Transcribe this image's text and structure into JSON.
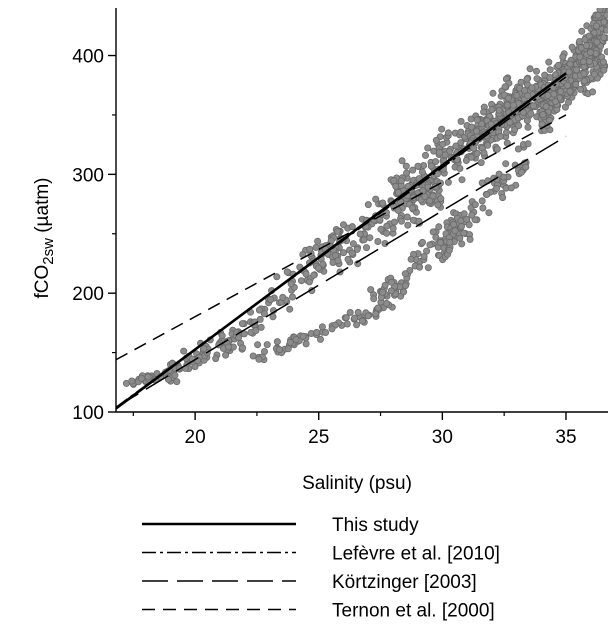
{
  "chart_data": {
    "type": "scatter",
    "title": "",
    "xlabel": "Salinity (psu)",
    "ylabel": {
      "main": "fCO",
      "subscript": "2sw",
      "unit": " (µatm)"
    },
    "xlim": [
      16.8,
      36.7
    ],
    "ylim": [
      100,
      440
    ],
    "x_ticks": [
      20,
      25,
      30,
      35
    ],
    "y_ticks": [
      100,
      200,
      300,
      400
    ],
    "grid": false,
    "legend_position": "below plot",
    "observations": {
      "color": "#8c8c8c",
      "edge_color": "#6a6a6a",
      "clusters": [
        {
          "x": [
            17.3,
            19.0
          ],
          "y": [
            124,
            133
          ],
          "n": 30,
          "spread": 3
        },
        {
          "x": [
            19.0,
            22.0
          ],
          "y": [
            133,
            165
          ],
          "n": 80,
          "spread": 8
        },
        {
          "x": [
            22.0,
            26.0
          ],
          "y": [
            165,
            250
          ],
          "n": 90,
          "spread": 14
        },
        {
          "x": [
            22.5,
            28.0
          ],
          "y": [
            148,
            190
          ],
          "n": 70,
          "spread": 5
        },
        {
          "x": [
            25.0,
            30.0
          ],
          "y": [
            230,
            290
          ],
          "n": 140,
          "spread": 18
        },
        {
          "x": [
            27.0,
            31.0
          ],
          "y": [
            190,
            260
          ],
          "n": 90,
          "spread": 14
        },
        {
          "x": [
            28.0,
            33.0
          ],
          "y": [
            280,
            360
          ],
          "n": 220,
          "spread": 20
        },
        {
          "x": [
            30.0,
            33.5
          ],
          "y": [
            240,
            320
          ],
          "n": 80,
          "spread": 14
        },
        {
          "x": [
            31.0,
            36.6
          ],
          "y": [
            330,
            400
          ],
          "n": 320,
          "spread": 18
        },
        {
          "x": [
            34.0,
            36.6
          ],
          "y": [
            350,
            430
          ],
          "n": 260,
          "spread": 16
        }
      ]
    },
    "series": [
      {
        "name": "This study",
        "dash": "solid",
        "x": [
          16.8,
          35.0
        ],
        "y": [
          103,
          385
        ]
      },
      {
        "name": "Lefèvre et al. [2010]",
        "dash": "dashdot",
        "x": [
          16.8,
          35.0
        ],
        "y": [
          104,
          382
        ]
      },
      {
        "name": "Körtzinger [2003]",
        "dash": "longdash",
        "x": [
          16.8,
          35.0
        ],
        "y": [
          104,
          332
        ]
      },
      {
        "name": "Ternon et al. [2000]",
        "dash": "dash",
        "x": [
          16.8,
          35.0
        ],
        "y": [
          144,
          350
        ]
      }
    ]
  }
}
